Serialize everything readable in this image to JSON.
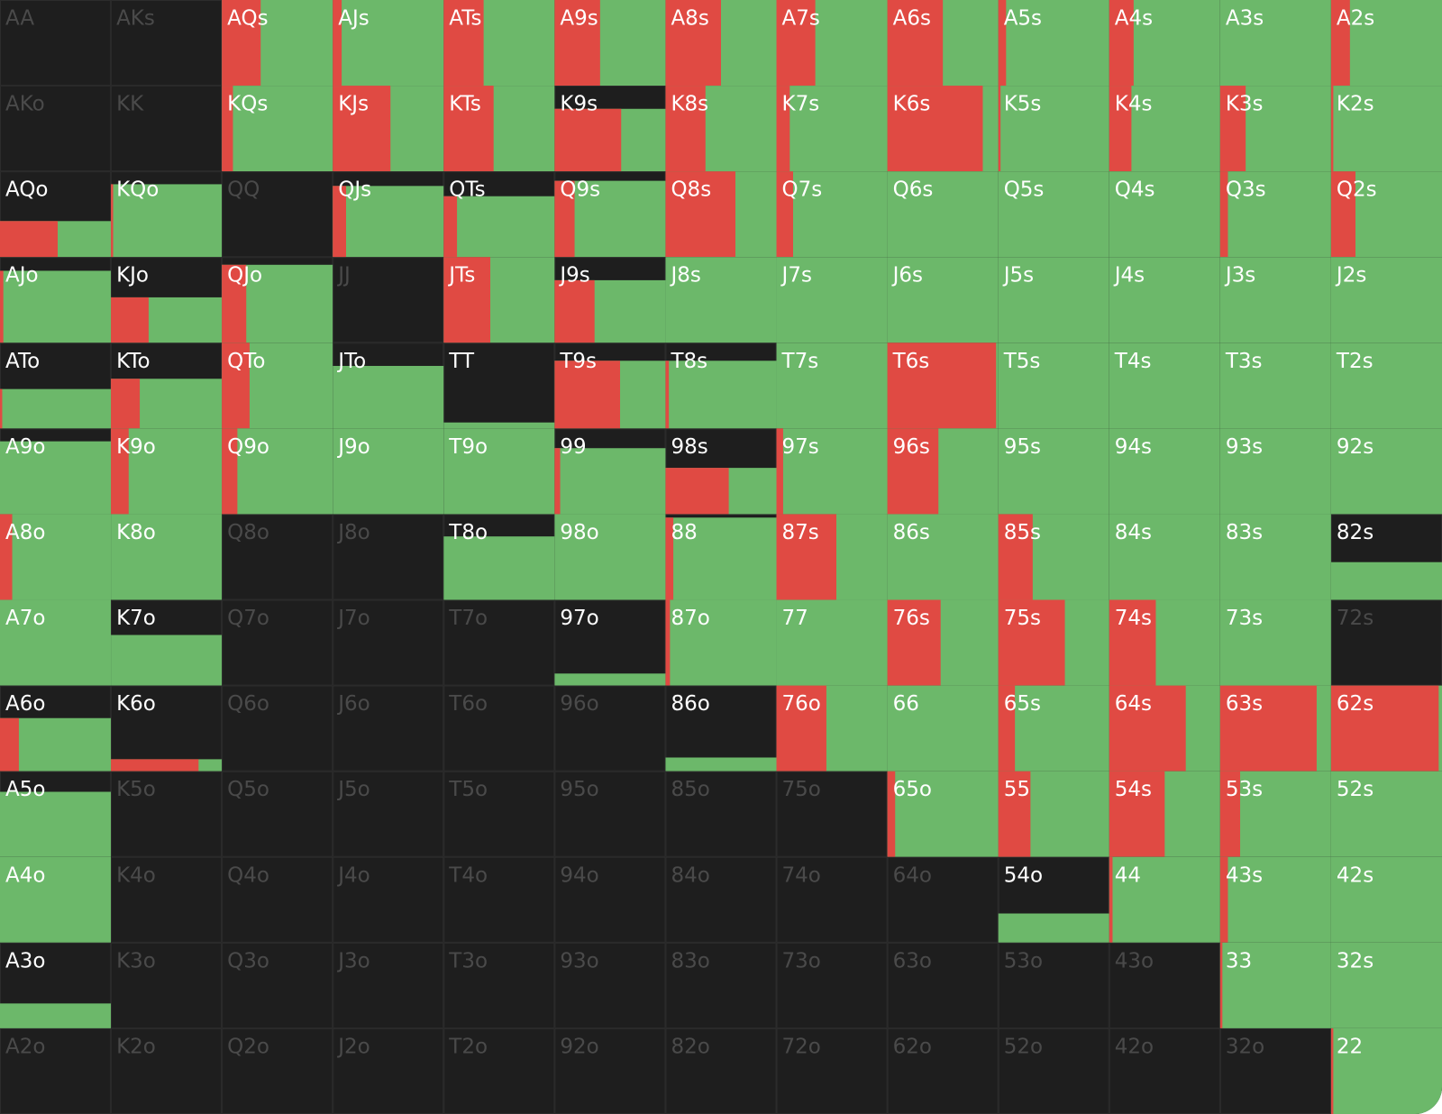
{
  "grid": {
    "rows": [
      [
        {
          "label": "AA",
          "play": 0,
          "raise": 0
        },
        {
          "label": "AKs",
          "play": 0,
          "raise": 0
        },
        {
          "label": "AQs",
          "play": 1,
          "raise": 0.35
        },
        {
          "label": "AJs",
          "play": 1,
          "raise": 0.08
        },
        {
          "label": "ATs",
          "play": 1,
          "raise": 0.36
        },
        {
          "label": "A9s",
          "play": 1,
          "raise": 0.41
        },
        {
          "label": "A8s",
          "play": 1,
          "raise": 0.5
        },
        {
          "label": "A7s",
          "play": 1,
          "raise": 0.35
        },
        {
          "label": "A6s",
          "play": 1,
          "raise": 0.5
        },
        {
          "label": "A5s",
          "play": 1,
          "raise": 0.07
        },
        {
          "label": "A4s",
          "play": 1,
          "raise": 0.22
        },
        {
          "label": "A3s",
          "play": 1,
          "raise": 0
        },
        {
          "label": "A2s",
          "play": 1,
          "raise": 0.17
        }
      ],
      [
        {
          "label": "AKo",
          "play": 0,
          "raise": 0
        },
        {
          "label": "KK",
          "play": 0,
          "raise": 0
        },
        {
          "label": "KQs",
          "play": 1,
          "raise": 0.1
        },
        {
          "label": "KJs",
          "play": 1,
          "raise": 0.52
        },
        {
          "label": "KTs",
          "play": 1,
          "raise": 0.45
        },
        {
          "label": "K9s",
          "play": 0.73,
          "raise": 0.6
        },
        {
          "label": "K8s",
          "play": 1,
          "raise": 0.36
        },
        {
          "label": "K7s",
          "play": 1,
          "raise": 0.12
        },
        {
          "label": "K6s",
          "play": 1,
          "raise": 0.86
        },
        {
          "label": "K5s",
          "play": 1,
          "raise": 0.02
        },
        {
          "label": "K4s",
          "play": 1,
          "raise": 0.2
        },
        {
          "label": "K3s",
          "play": 1,
          "raise": 0.23
        },
        {
          "label": "K2s",
          "play": 1,
          "raise": 0.02
        }
      ],
      [
        {
          "label": "AQo",
          "play": 0.42,
          "raise": 0.52
        },
        {
          "label": "KQo",
          "play": 0.85,
          "raise": 0.02
        },
        {
          "label": "QQ",
          "play": 0,
          "raise": 0
        },
        {
          "label": "QJs",
          "play": 0.83,
          "raise": 0.12
        },
        {
          "label": "QTs",
          "play": 0.71,
          "raise": 0.12
        },
        {
          "label": "Q9s",
          "play": 0.89,
          "raise": 0.18
        },
        {
          "label": "Q8s",
          "play": 1,
          "raise": 0.63
        },
        {
          "label": "Q7s",
          "play": 1,
          "raise": 0.15
        },
        {
          "label": "Q6s",
          "play": 1,
          "raise": 0
        },
        {
          "label": "Q5s",
          "play": 1,
          "raise": 0
        },
        {
          "label": "Q4s",
          "play": 1,
          "raise": 0
        },
        {
          "label": "Q3s",
          "play": 1,
          "raise": 0.07
        },
        {
          "label": "Q2s",
          "play": 1,
          "raise": 0.22
        }
      ],
      [
        {
          "label": "AJo",
          "play": 0.84,
          "raise": 0.03
        },
        {
          "label": "KJo",
          "play": 0.53,
          "raise": 0.34
        },
        {
          "label": "QJo",
          "play": 0.91,
          "raise": 0.22
        },
        {
          "label": "JJ",
          "play": 0,
          "raise": 0
        },
        {
          "label": "JTs",
          "play": 1,
          "raise": 0.42
        },
        {
          "label": "J9s",
          "play": 0.73,
          "raise": 0.36
        },
        {
          "label": "J8s",
          "play": 1,
          "raise": 0
        },
        {
          "label": "J7s",
          "play": 1,
          "raise": 0
        },
        {
          "label": "J6s",
          "play": 1,
          "raise": 0
        },
        {
          "label": "J5s",
          "play": 1,
          "raise": 0
        },
        {
          "label": "J4s",
          "play": 1,
          "raise": 0
        },
        {
          "label": "J3s",
          "play": 1,
          "raise": 0
        },
        {
          "label": "J2s",
          "play": 1,
          "raise": 0
        }
      ],
      [
        {
          "label": "ATo",
          "play": 0.46,
          "raise": 0.02
        },
        {
          "label": "KTo",
          "play": 0.58,
          "raise": 0.26
        },
        {
          "label": "QTo",
          "play": 1,
          "raise": 0.25
        },
        {
          "label": "JTo",
          "play": 0.73,
          "raise": 0
        },
        {
          "label": "TT",
          "play": 0.07,
          "raise": 0
        },
        {
          "label": "T9s",
          "play": 0.79,
          "raise": 0.59
        },
        {
          "label": "T8s",
          "play": 0.79,
          "raise": 0.03
        },
        {
          "label": "T7s",
          "play": 1,
          "raise": 0
        },
        {
          "label": "T6s",
          "play": 1,
          "raise": 0.98
        },
        {
          "label": "T5s",
          "play": 1,
          "raise": 0
        },
        {
          "label": "T4s",
          "play": 1,
          "raise": 0
        },
        {
          "label": "T3s",
          "play": 1,
          "raise": 0
        },
        {
          "label": "T2s",
          "play": 1,
          "raise": 0
        }
      ],
      [
        {
          "label": "A9o",
          "play": 0.85,
          "raise": 0
        },
        {
          "label": "K9o",
          "play": 1,
          "raise": 0.16
        },
        {
          "label": "Q9o",
          "play": 1,
          "raise": 0.14
        },
        {
          "label": "J9o",
          "play": 1,
          "raise": 0
        },
        {
          "label": "T9o",
          "play": 1,
          "raise": 0
        },
        {
          "label": "99",
          "play": 0.77,
          "raise": 0.05
        },
        {
          "label": "98s",
          "play": 0.54,
          "raise": 0.57
        },
        {
          "label": "97s",
          "play": 1,
          "raise": 0.06
        },
        {
          "label": "96s",
          "play": 1,
          "raise": 0.46
        },
        {
          "label": "95s",
          "play": 1,
          "raise": 0
        },
        {
          "label": "94s",
          "play": 1,
          "raise": 0
        },
        {
          "label": "93s",
          "play": 1,
          "raise": 0
        },
        {
          "label": "92s",
          "play": 1,
          "raise": 0
        }
      ],
      [
        {
          "label": "A8o",
          "play": 1,
          "raise": 0.11
        },
        {
          "label": "K8o",
          "play": 1,
          "raise": 0
        },
        {
          "label": "Q8o",
          "play": 0,
          "raise": 0
        },
        {
          "label": "J8o",
          "play": 0,
          "raise": 0
        },
        {
          "label": "T8o",
          "play": 0.74,
          "raise": 0
        },
        {
          "label": "98o",
          "play": 1,
          "raise": 0
        },
        {
          "label": "88",
          "play": 0.96,
          "raise": 0.07
        },
        {
          "label": "87s",
          "play": 1,
          "raise": 0.54
        },
        {
          "label": "86s",
          "play": 1,
          "raise": 0
        },
        {
          "label": "85s",
          "play": 1,
          "raise": 0.31
        },
        {
          "label": "84s",
          "play": 1,
          "raise": 0
        },
        {
          "label": "83s",
          "play": 1,
          "raise": 0
        },
        {
          "label": "82s",
          "play": 0.44,
          "raise": 0
        }
      ],
      [
        {
          "label": "A7o",
          "play": 1,
          "raise": 0
        },
        {
          "label": "K7o",
          "play": 0.59,
          "raise": 0
        },
        {
          "label": "Q7o",
          "play": 0,
          "raise": 0
        },
        {
          "label": "J7o",
          "play": 0,
          "raise": 0
        },
        {
          "label": "T7o",
          "play": 0,
          "raise": 0
        },
        {
          "label": "97o",
          "play": 0.14,
          "raise": 0
        },
        {
          "label": "87o",
          "play": 1,
          "raise": 0.04
        },
        {
          "label": "77",
          "play": 1,
          "raise": 0
        },
        {
          "label": "76s",
          "play": 1,
          "raise": 0.48
        },
        {
          "label": "75s",
          "play": 1,
          "raise": 0.6
        },
        {
          "label": "74s",
          "play": 1,
          "raise": 0.42
        },
        {
          "label": "73s",
          "play": 1,
          "raise": 0
        },
        {
          "label": "72s",
          "play": 0,
          "raise": 0
        }
      ],
      [
        {
          "label": "A6o",
          "play": 0.62,
          "raise": 0.17
        },
        {
          "label": "K6o",
          "play": 0.14,
          "raise": 0.79
        },
        {
          "label": "Q6o",
          "play": 0,
          "raise": 0
        },
        {
          "label": "J6o",
          "play": 0,
          "raise": 0
        },
        {
          "label": "T6o",
          "play": 0,
          "raise": 0
        },
        {
          "label": "96o",
          "play": 0,
          "raise": 0
        },
        {
          "label": "86o",
          "play": 0.16,
          "raise": 0
        },
        {
          "label": "76o",
          "play": 1,
          "raise": 0.45
        },
        {
          "label": "66",
          "play": 1,
          "raise": 0
        },
        {
          "label": "65s",
          "play": 1,
          "raise": 0.15
        },
        {
          "label": "64s",
          "play": 1,
          "raise": 0.69
        },
        {
          "label": "63s",
          "play": 1,
          "raise": 0.87
        },
        {
          "label": "62s",
          "play": 1,
          "raise": 0.97
        }
      ],
      [
        {
          "label": "A5o",
          "play": 0.76,
          "raise": 0
        },
        {
          "label": "K5o",
          "play": 0,
          "raise": 0
        },
        {
          "label": "Q5o",
          "play": 0,
          "raise": 0
        },
        {
          "label": "J5o",
          "play": 0,
          "raise": 0
        },
        {
          "label": "T5o",
          "play": 0,
          "raise": 0
        },
        {
          "label": "95o",
          "play": 0,
          "raise": 0
        },
        {
          "label": "85o",
          "play": 0,
          "raise": 0
        },
        {
          "label": "75o",
          "play": 0,
          "raise": 0
        },
        {
          "label": "65o",
          "play": 1,
          "raise": 0.07
        },
        {
          "label": "55",
          "play": 1,
          "raise": 0.29
        },
        {
          "label": "54s",
          "play": 1,
          "raise": 0.5
        },
        {
          "label": "53s",
          "play": 1,
          "raise": 0.18
        },
        {
          "label": "52s",
          "play": 1,
          "raise": 0
        }
      ],
      [
        {
          "label": "A4o",
          "play": 1,
          "raise": 0
        },
        {
          "label": "K4o",
          "play": 0,
          "raise": 0
        },
        {
          "label": "Q4o",
          "play": 0,
          "raise": 0
        },
        {
          "label": "J4o",
          "play": 0,
          "raise": 0
        },
        {
          "label": "T4o",
          "play": 0,
          "raise": 0
        },
        {
          "label": "94o",
          "play": 0,
          "raise": 0
        },
        {
          "label": "84o",
          "play": 0,
          "raise": 0
        },
        {
          "label": "74o",
          "play": 0,
          "raise": 0
        },
        {
          "label": "64o",
          "play": 0,
          "raise": 0
        },
        {
          "label": "54o",
          "play": 0.34,
          "raise": 0
        },
        {
          "label": "44",
          "play": 1,
          "raise": 0.03
        },
        {
          "label": "43s",
          "play": 1,
          "raise": 0.07
        },
        {
          "label": "42s",
          "play": 1,
          "raise": 0
        }
      ],
      [
        {
          "label": "A3o",
          "play": 0.29,
          "raise": 0
        },
        {
          "label": "K3o",
          "play": 0,
          "raise": 0
        },
        {
          "label": "Q3o",
          "play": 0,
          "raise": 0
        },
        {
          "label": "J3o",
          "play": 0,
          "raise": 0
        },
        {
          "label": "T3o",
          "play": 0,
          "raise": 0
        },
        {
          "label": "93o",
          "play": 0,
          "raise": 0
        },
        {
          "label": "83o",
          "play": 0,
          "raise": 0
        },
        {
          "label": "73o",
          "play": 0,
          "raise": 0
        },
        {
          "label": "63o",
          "play": 0,
          "raise": 0
        },
        {
          "label": "53o",
          "play": 0,
          "raise": 0
        },
        {
          "label": "43o",
          "play": 0,
          "raise": 0
        },
        {
          "label": "33",
          "play": 1,
          "raise": 0.02
        },
        {
          "label": "32s",
          "play": 1,
          "raise": 0
        }
      ],
      [
        {
          "label": "A2o",
          "play": 0,
          "raise": 0
        },
        {
          "label": "K2o",
          "play": 0,
          "raise": 0
        },
        {
          "label": "Q2o",
          "play": 0,
          "raise": 0
        },
        {
          "label": "J2o",
          "play": 0,
          "raise": 0
        },
        {
          "label": "T2o",
          "play": 0,
          "raise": 0
        },
        {
          "label": "92o",
          "play": 0,
          "raise": 0
        },
        {
          "label": "82o",
          "play": 0,
          "raise": 0
        },
        {
          "label": "72o",
          "play": 0,
          "raise": 0
        },
        {
          "label": "62o",
          "play": 0,
          "raise": 0
        },
        {
          "label": "52o",
          "play": 0,
          "raise": 0
        },
        {
          "label": "42o",
          "play": 0,
          "raise": 0
        },
        {
          "label": "32o",
          "play": 0,
          "raise": 0
        },
        {
          "label": "22",
          "play": 1,
          "raise": 0.02
        }
      ]
    ]
  }
}
